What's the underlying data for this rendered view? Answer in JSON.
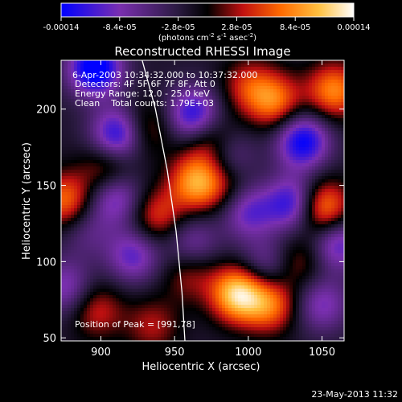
{
  "chart_data": {
    "type": "heatmap",
    "title": "Reconstructed RHESSI Image",
    "xlabel": "Heliocentric X (arcsec)",
    "ylabel": "Heliocentric Y (arcsec)",
    "xlim": [
      873,
      1065
    ],
    "ylim": [
      48,
      232
    ],
    "xticks": [
      900,
      950,
      1000,
      1050
    ],
    "yticks": [
      50,
      100,
      150,
      200
    ],
    "colorbar": {
      "range": [
        -0.00014,
        0.00014
      ],
      "ticks": [
        "-0.00014",
        "-8.4e-05",
        "-2.8e-05",
        "2.8e-05",
        "8.4e-05",
        "0.00014"
      ],
      "unit_label": "(photons cm-2 s-1 asec-2)",
      "colors": [
        "#0000ff",
        "#7a2fb0",
        "#2a1a40",
        "#000000",
        "#c01010",
        "#ff6a00",
        "#ffc040",
        "#ffffff"
      ]
    },
    "annotations": {
      "time": "6-Apr-2003 10:34:32.000 to 10:37:32.000",
      "detectors": "Detectors: 4F 5F 6F 7F 8F, Att 0",
      "energy": "Energy Range: 12.0 - 25.0 keV",
      "clean": "Clean    Total counts: 1.79E+03",
      "peak": "Position of Peak = [991,78]"
    },
    "limb_curve": [
      [
        928,
        232
      ],
      [
        937,
        200
      ],
      [
        945,
        160
      ],
      [
        951,
        120
      ],
      [
        955,
        80
      ],
      [
        957,
        48
      ]
    ],
    "sources": [
      {
        "x": 896,
        "y": 227,
        "value": -0.00014
      },
      {
        "x": 912,
        "y": 183,
        "value": -0.00012
      },
      {
        "x": 963,
        "y": 196,
        "value": -0.00011
      },
      {
        "x": 1037,
        "y": 179,
        "value": -0.00012
      },
      {
        "x": 1031,
        "y": 138,
        "value": -0.00011
      },
      {
        "x": 910,
        "y": 143,
        "value": -9e-05
      },
      {
        "x": 985,
        "y": 170,
        "value": -7e-05
      },
      {
        "x": 1000,
        "y": 133,
        "value": -8e-05
      },
      {
        "x": 1060,
        "y": 112,
        "value": -9e-05
      },
      {
        "x": 922,
        "y": 104,
        "value": -8e-05
      },
      {
        "x": 1012,
        "y": 97,
        "value": -6e-05
      },
      {
        "x": 1050,
        "y": 72,
        "value": -7e-05
      },
      {
        "x": 876,
        "y": 83,
        "value": -7e-05
      },
      {
        "x": 962,
        "y": 112,
        "value": -6e-05
      },
      {
        "x": 965,
        "y": 152,
        "value": 0.00011
      },
      {
        "x": 975,
        "y": 178,
        "value": 8e-05
      },
      {
        "x": 993,
        "y": 79,
        "value": 0.00014
      },
      {
        "x": 1015,
        "y": 72,
        "value": 9e-05
      },
      {
        "x": 1050,
        "y": 135,
        "value": 0.00012
      },
      {
        "x": 1058,
        "y": 212,
        "value": 0.0001
      },
      {
        "x": 1018,
        "y": 205,
        "value": 9e-05
      },
      {
        "x": 1000,
        "y": 215,
        "value": 6e-05
      },
      {
        "x": 876,
        "y": 140,
        "value": 9e-05
      },
      {
        "x": 905,
        "y": 160,
        "value": 7e-05
      },
      {
        "x": 930,
        "y": 187,
        "value": 6e-05
      },
      {
        "x": 938,
        "y": 130,
        "value": 7e-05
      },
      {
        "x": 897,
        "y": 68,
        "value": 6e-05
      },
      {
        "x": 935,
        "y": 58,
        "value": 5e-05
      },
      {
        "x": 1035,
        "y": 100,
        "value": 5e-05
      },
      {
        "x": 985,
        "y": 150,
        "value": 4e-05
      },
      {
        "x": 960,
        "y": 92,
        "value": 5e-05
      },
      {
        "x": 890,
        "y": 120,
        "value": -4e-05
      }
    ]
  },
  "footer": {
    "date": "23-May-2013 11:32"
  }
}
